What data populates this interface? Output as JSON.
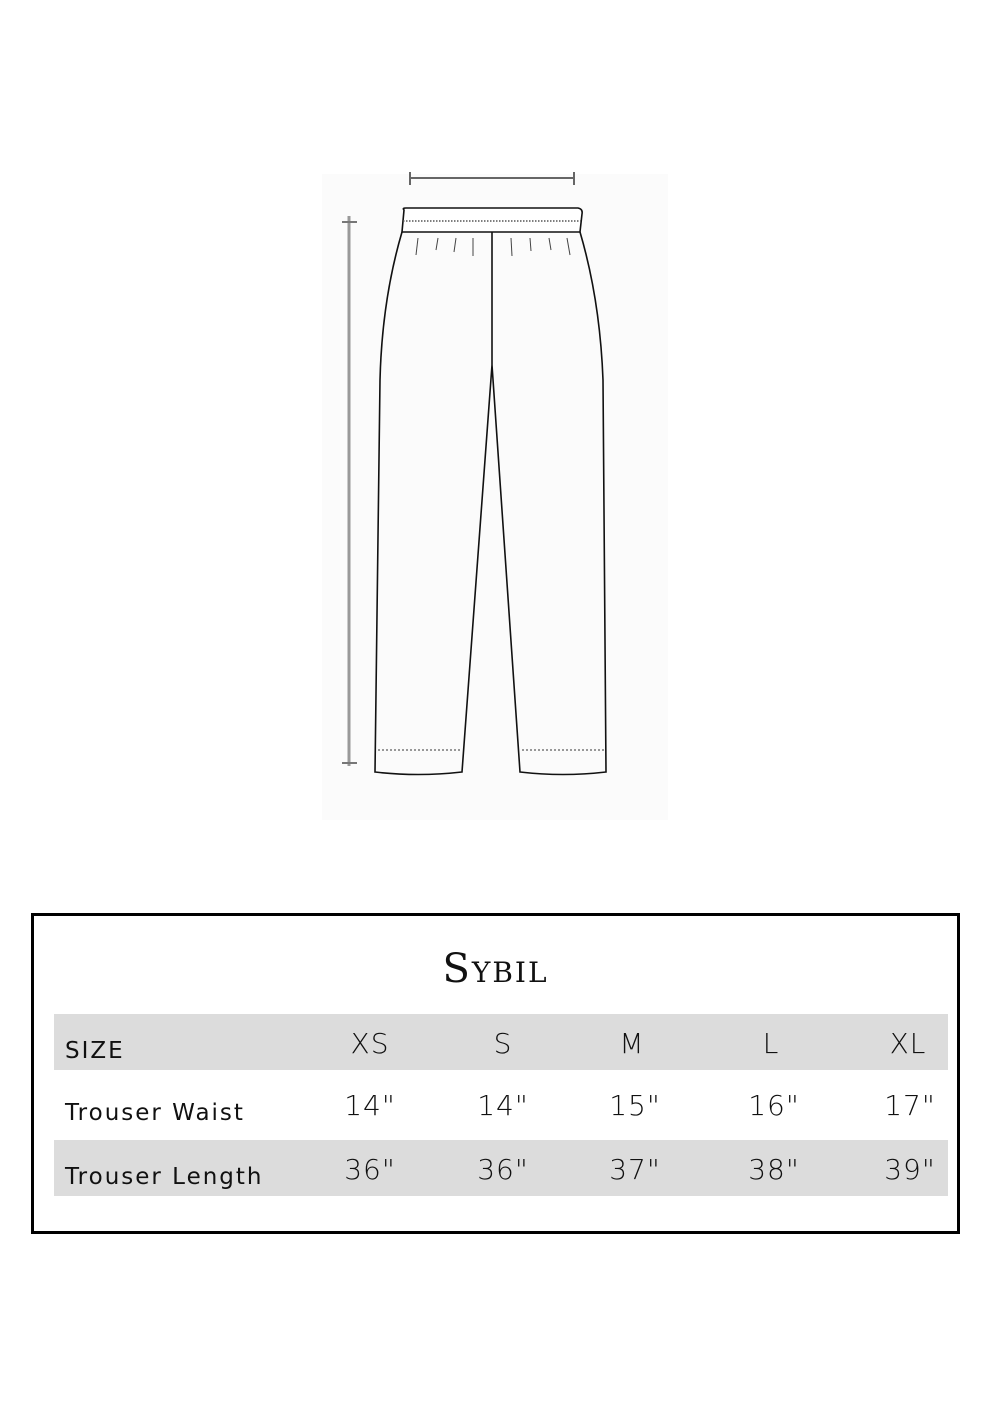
{
  "diagram": {
    "measure_icons": [
      "waist-measure-line",
      "length-measure-line"
    ]
  },
  "size_chart": {
    "title": "Sybil",
    "header": {
      "label": "SIZE",
      "sizes": [
        "XS",
        "S",
        "M",
        "L",
        "XL"
      ]
    },
    "rows": [
      {
        "label": "Trouser Waist",
        "values": [
          "14\"",
          "14\"",
          "15\"",
          "16\"",
          "17\""
        ]
      },
      {
        "label": "Trouser Length",
        "values": [
          "36\"",
          "36\"",
          "37\"",
          "38\"",
          "39\""
        ]
      }
    ],
    "colors": {
      "row_shade": "#dcdcdc",
      "border": "#000000"
    }
  }
}
